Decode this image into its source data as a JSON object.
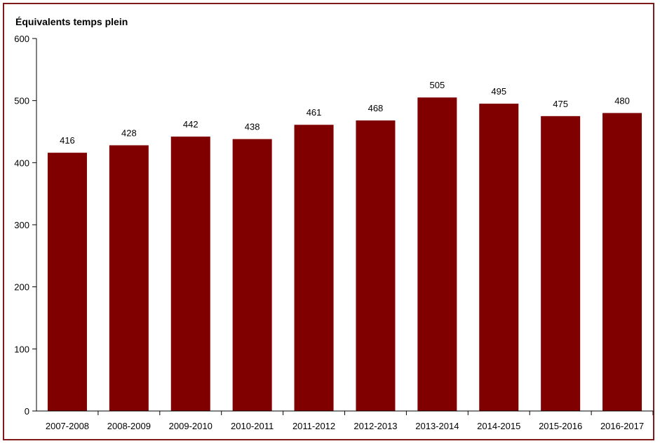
{
  "chart_data": {
    "type": "bar",
    "ylabel": "Équivalents temps plein",
    "categories": [
      "2007-2008",
      "2008-2009",
      "2009-2010",
      "2010-2011",
      "2011-2012",
      "2012-2013",
      "2013-2014",
      "2014-2015",
      "2015-2016",
      "2016-2017"
    ],
    "values": [
      416,
      428,
      442,
      438,
      461,
      468,
      505,
      495,
      475,
      480
    ],
    "ylim": [
      0,
      600
    ],
    "yticks": [
      0,
      100,
      200,
      300,
      400,
      500,
      600
    ],
    "grid": false,
    "legend": "none",
    "colors": {
      "bar": "#800000",
      "frame": "#7f1a1a",
      "axis": "#000000"
    }
  }
}
